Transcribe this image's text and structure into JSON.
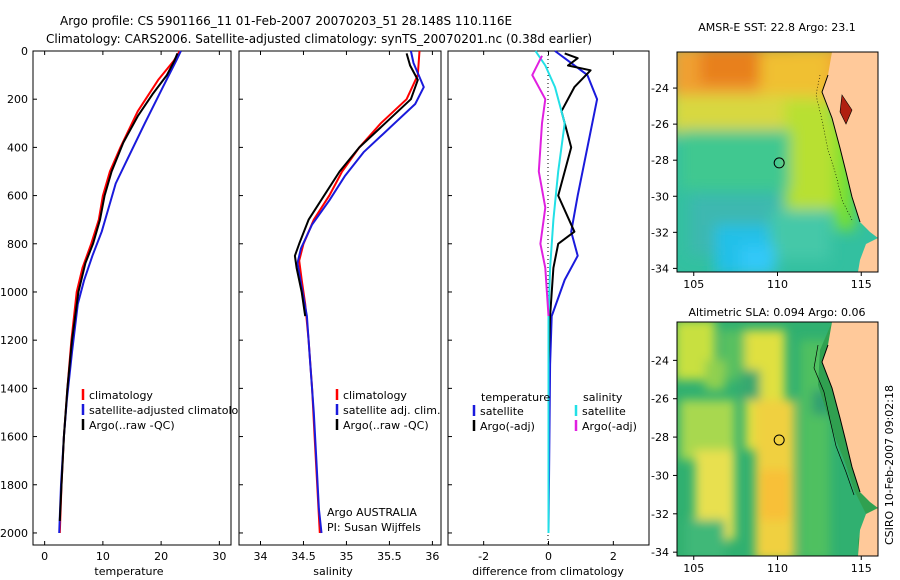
{
  "header": {
    "line1": "Argo profile: CS 5901166_11 01-Feb-2007 20070203_51 28.148S 110.116E",
    "line2": "Climatology: CARS2006. Satellite-adjusted climatology: synTS_20070201.nc (0.38d earlier)"
  },
  "side_label": "CSIRO 10-Feb-2007 09:02:18",
  "colors": {
    "red": "#ff0000",
    "blue": "#1a1adc",
    "black": "#000000",
    "cyan": "#22e0e6",
    "magenta": "#e020e0"
  },
  "chart_data": [
    {
      "type": "line",
      "xlabel": "temperature",
      "xlim": [
        -2,
        32
      ],
      "ylim": [
        2050,
        0
      ],
      "xticks": [
        "0",
        "10",
        "20",
        "30"
      ],
      "yticks": [
        "0",
        "200",
        "400",
        "600",
        "800",
        "1000",
        "1200",
        "1400",
        "1600",
        "1800",
        "2000"
      ],
      "legend": {
        "placement": "lower-center",
        "entries": [
          "climatology",
          "satellite-adjusted climatology",
          "Argo(..raw -QC)"
        ]
      },
      "series": [
        {
          "name": "climatology",
          "color": "red",
          "points": [
            [
              23.2,
              0
            ],
            [
              22.2,
              40
            ],
            [
              19.5,
              120
            ],
            [
              16,
              250
            ],
            [
              13,
              400
            ],
            [
              11.2,
              500
            ],
            [
              10,
              600
            ],
            [
              9.3,
              700
            ],
            [
              8,
              800
            ],
            [
              6.5,
              900
            ],
            [
              5.5,
              1000
            ],
            [
              4.6,
              1200
            ],
            [
              3.9,
              1400
            ],
            [
              3.3,
              1600
            ],
            [
              2.9,
              1800
            ],
            [
              2.6,
              2000
            ]
          ]
        },
        {
          "name": "satellite-adjusted climatology",
          "color": "blue",
          "points": [
            [
              23.4,
              0
            ],
            [
              22.6,
              40
            ],
            [
              20.3,
              150
            ],
            [
              17.2,
              300
            ],
            [
              14.2,
              450
            ],
            [
              12.2,
              550
            ],
            [
              11,
              650
            ],
            [
              9.8,
              750
            ],
            [
              8.2,
              850
            ],
            [
              6.8,
              950
            ],
            [
              5.7,
              1050
            ],
            [
              4.7,
              1250
            ],
            [
              3.8,
              1450
            ],
            [
              3.3,
              1600
            ],
            [
              2.8,
              1800
            ],
            [
              2.5,
              2000
            ]
          ]
        },
        {
          "name": "Argo(..raw -QC)",
          "color": "black",
          "points": [
            [
              22.8,
              10
            ],
            [
              22.3,
              40
            ],
            [
              21,
              100
            ],
            [
              18.5,
              180
            ],
            [
              16,
              270
            ],
            [
              13.5,
              380
            ],
            [
              11.5,
              500
            ],
            [
              10.3,
              600
            ],
            [
              9.5,
              700
            ],
            [
              8.3,
              800
            ],
            [
              7,
              880
            ],
            [
              5.8,
              1000
            ],
            [
              4.7,
              1200
            ],
            [
              3.9,
              1400
            ],
            [
              3.3,
              1600
            ],
            [
              2.9,
              1800
            ],
            [
              2.6,
              1950
            ]
          ]
        }
      ]
    },
    {
      "type": "line",
      "xlabel": "salinity",
      "xlim": [
        33.75,
        36.1
      ],
      "ylim": [
        2050,
        0
      ],
      "xticks": [
        "34",
        "34.5",
        "35",
        "35.5",
        "36"
      ],
      "yticks": [],
      "legend": {
        "placement": "lower-center",
        "entries": [
          "climatology",
          "satellite adj. clim.",
          "Argo(..raw -QC)"
        ]
      },
      "annotation": [
        "Argo AUSTRALIA",
        "PI: Susan Wijffels"
      ],
      "series": [
        {
          "name": "climatology",
          "color": "red",
          "points": [
            [
              35.85,
              0
            ],
            [
              35.83,
              100
            ],
            [
              35.7,
              200
            ],
            [
              35.4,
              300
            ],
            [
              35.15,
              400
            ],
            [
              34.95,
              500
            ],
            [
              34.8,
              600
            ],
            [
              34.62,
              700
            ],
            [
              34.5,
              800
            ],
            [
              34.45,
              870
            ],
            [
              34.48,
              950
            ],
            [
              34.52,
              1050
            ],
            [
              34.56,
              1200
            ],
            [
              34.6,
              1400
            ],
            [
              34.63,
              1600
            ],
            [
              34.66,
              1800
            ],
            [
              34.69,
              2000
            ]
          ]
        },
        {
          "name": "satellite adj. clim.",
          "color": "blue",
          "points": [
            [
              35.75,
              0
            ],
            [
              35.78,
              50
            ],
            [
              35.9,
              150
            ],
            [
              35.8,
              220
            ],
            [
              35.5,
              320
            ],
            [
              35.2,
              420
            ],
            [
              34.98,
              520
            ],
            [
              34.8,
              620
            ],
            [
              34.6,
              720
            ],
            [
              34.47,
              820
            ],
            [
              34.43,
              880
            ],
            [
              34.48,
              980
            ],
            [
              34.54,
              1100
            ],
            [
              34.58,
              1300
            ],
            [
              34.62,
              1500
            ],
            [
              34.65,
              1700
            ],
            [
              34.68,
              1900
            ],
            [
              34.71,
              2000
            ]
          ]
        },
        {
          "name": "Argo(..raw -QC)",
          "color": "black",
          "points": [
            [
              35.7,
              10
            ],
            [
              35.74,
              60
            ],
            [
              35.83,
              120
            ],
            [
              35.75,
              200
            ],
            [
              35.45,
              300
            ],
            [
              35.15,
              400
            ],
            [
              34.92,
              500
            ],
            [
              34.74,
              600
            ],
            [
              34.56,
              700
            ],
            [
              34.45,
              800
            ],
            [
              34.4,
              850
            ],
            [
              34.42,
              900
            ],
            [
              34.48,
              1000
            ],
            [
              34.52,
              1100
            ]
          ]
        }
      ]
    },
    {
      "type": "line",
      "xlabel": "difference from climatology",
      "xlim": [
        -3.1,
        3.1
      ],
      "ylim": [
        2050,
        0
      ],
      "xticks": [
        "-2",
        "0",
        "2"
      ],
      "yticks": [],
      "legend": {
        "placement": "lower-center",
        "headers": [
          "temperature",
          "salinity"
        ],
        "entries": [
          "satellite",
          "Argo(-adj)",
          "satellite",
          "Argo(-adj)"
        ]
      },
      "series": [
        {
          "name": "satellite",
          "group": "temperature",
          "color": "blue",
          "points": [
            [
              0.2,
              0
            ],
            [
              0.5,
              30
            ],
            [
              1.2,
              100
            ],
            [
              1.5,
              200
            ],
            [
              1.2,
              400
            ],
            [
              0.9,
              600
            ],
            [
              0.7,
              750
            ],
            [
              0.9,
              850
            ],
            [
              0.5,
              950
            ],
            [
              0.1,
              1100
            ],
            [
              0.05,
              1300
            ],
            [
              0,
              2000
            ]
          ]
        },
        {
          "name": "Argo(-adj)",
          "group": "temperature",
          "color": "black",
          "points": [
            [
              0.5,
              10
            ],
            [
              0.9,
              30
            ],
            [
              0.6,
              60
            ],
            [
              1.3,
              80
            ],
            [
              0.8,
              150
            ],
            [
              0.4,
              250
            ],
            [
              0.7,
              400
            ],
            [
              0.3,
              600
            ],
            [
              0.8,
              750
            ],
            [
              0.3,
              800
            ],
            [
              0.15,
              900
            ],
            [
              0.05,
              1100
            ],
            [
              0,
              1300
            ],
            [
              0,
              1800
            ]
          ]
        },
        {
          "name": "satellite",
          "group": "salinity",
          "color": "cyan",
          "points": [
            [
              -0.4,
              0
            ],
            [
              -0.1,
              60
            ],
            [
              0.2,
              150
            ],
            [
              0.5,
              300
            ],
            [
              0.3,
              500
            ],
            [
              0.15,
              700
            ],
            [
              0.05,
              900
            ],
            [
              0,
              1100
            ],
            [
              0,
              2000
            ]
          ]
        },
        {
          "name": "Argo(-adj)",
          "group": "salinity",
          "color": "magenta",
          "points": [
            [
              -0.2,
              20
            ],
            [
              -0.5,
              100
            ],
            [
              -0.1,
              200
            ],
            [
              -0.2,
              300
            ],
            [
              -0.3,
              500
            ],
            [
              -0.1,
              650
            ],
            [
              -0.25,
              800
            ],
            [
              -0.1,
              900
            ],
            [
              -0.05,
              1000
            ],
            [
              0,
              1100
            ]
          ]
        }
      ]
    },
    {
      "type": "heatmap",
      "title": "AMSR-E SST: 22.8 Argo: 23.1",
      "xlim": [
        104,
        116
      ],
      "ylim": [
        -34.2,
        -22
      ],
      "xticks": [
        "105",
        "110",
        "115"
      ],
      "yticks": [
        "-24",
        "-26",
        "-28",
        "-30",
        "-32",
        "-34"
      ],
      "marker": [
        110.1,
        -28.15
      ]
    },
    {
      "type": "heatmap",
      "title": "Altimetric SLA: 0.094 Argo: 0.06",
      "xlim": [
        104,
        116
      ],
      "ylim": [
        -34.2,
        -22
      ],
      "xticks": [
        "105",
        "110",
        "115"
      ],
      "yticks": [
        "-24",
        "-26",
        "-28",
        "-30",
        "-32",
        "-34"
      ],
      "marker": [
        110.1,
        -28.15
      ]
    }
  ]
}
